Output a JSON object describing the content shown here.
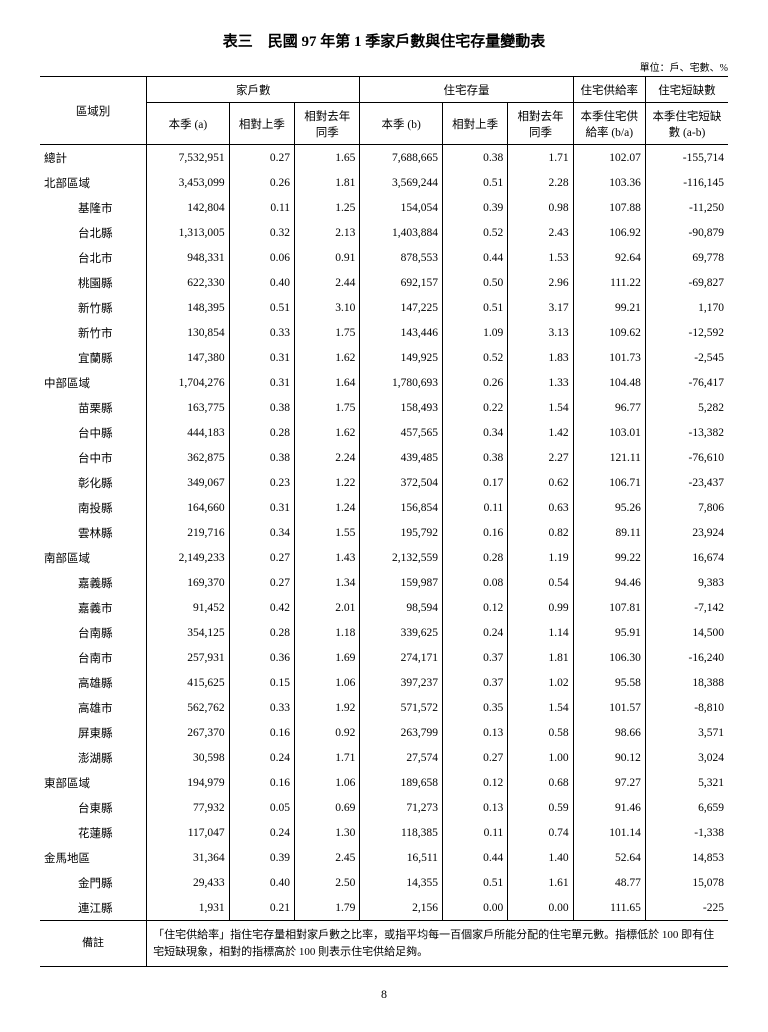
{
  "title": "表三　民國 97 年第 1 季家戶數與住宅存量變動表",
  "unit_label": "單位：戶、宅數、%",
  "page_number": "8",
  "headers": {
    "region": "區域別",
    "households": "家戶數",
    "housing_stock": "住宅存量",
    "supply_rate": "住宅供給率",
    "shortage": "住宅短缺數",
    "current_a": "本季 (a)",
    "vs_prev_q": "相對上季",
    "vs_prev_y": "相對去年同季",
    "current_b": "本季 (b)",
    "supply_rate_sub": "本季住宅供給率 (b/a)",
    "shortage_sub": "本季住宅短缺數 (a-b)"
  },
  "note_label": "備註",
  "note_text": "「住宅供給率」指住宅存量相對家戶數之比率，或指平均每一百個家戶所能分配的住宅單元數。指標低於 100 即有住宅短缺現象，相對的指標高於 100 則表示住宅供給足夠。",
  "rows": [
    {
      "region": "總計",
      "sub": false,
      "a": "7,532,951",
      "pq": "0.27",
      "py": "1.65",
      "b": "7,688,665",
      "bpq": "0.38",
      "bpy": "1.71",
      "rate": "102.07",
      "short": "-155,714"
    },
    {
      "region": "北部區域",
      "sub": false,
      "a": "3,453,099",
      "pq": "0.26",
      "py": "1.81",
      "b": "3,569,244",
      "bpq": "0.51",
      "bpy": "2.28",
      "rate": "103.36",
      "short": "-116,145"
    },
    {
      "region": "基隆市",
      "sub": true,
      "a": "142,804",
      "pq": "0.11",
      "py": "1.25",
      "b": "154,054",
      "bpq": "0.39",
      "bpy": "0.98",
      "rate": "107.88",
      "short": "-11,250"
    },
    {
      "region": "台北縣",
      "sub": true,
      "a": "1,313,005",
      "pq": "0.32",
      "py": "2.13",
      "b": "1,403,884",
      "bpq": "0.52",
      "bpy": "2.43",
      "rate": "106.92",
      "short": "-90,879"
    },
    {
      "region": "台北市",
      "sub": true,
      "a": "948,331",
      "pq": "0.06",
      "py": "0.91",
      "b": "878,553",
      "bpq": "0.44",
      "bpy": "1.53",
      "rate": "92.64",
      "short": "69,778"
    },
    {
      "region": "桃園縣",
      "sub": true,
      "a": "622,330",
      "pq": "0.40",
      "py": "2.44",
      "b": "692,157",
      "bpq": "0.50",
      "bpy": "2.96",
      "rate": "111.22",
      "short": "-69,827"
    },
    {
      "region": "新竹縣",
      "sub": true,
      "a": "148,395",
      "pq": "0.51",
      "py": "3.10",
      "b": "147,225",
      "bpq": "0.51",
      "bpy": "3.17",
      "rate": "99.21",
      "short": "1,170"
    },
    {
      "region": "新竹市",
      "sub": true,
      "a": "130,854",
      "pq": "0.33",
      "py": "1.75",
      "b": "143,446",
      "bpq": "1.09",
      "bpy": "3.13",
      "rate": "109.62",
      "short": "-12,592"
    },
    {
      "region": "宜蘭縣",
      "sub": true,
      "a": "147,380",
      "pq": "0.31",
      "py": "1.62",
      "b": "149,925",
      "bpq": "0.52",
      "bpy": "1.83",
      "rate": "101.73",
      "short": "-2,545"
    },
    {
      "region": "中部區域",
      "sub": false,
      "a": "1,704,276",
      "pq": "0.31",
      "py": "1.64",
      "b": "1,780,693",
      "bpq": "0.26",
      "bpy": "1.33",
      "rate": "104.48",
      "short": "-76,417"
    },
    {
      "region": "苗栗縣",
      "sub": true,
      "a": "163,775",
      "pq": "0.38",
      "py": "1.75",
      "b": "158,493",
      "bpq": "0.22",
      "bpy": "1.54",
      "rate": "96.77",
      "short": "5,282"
    },
    {
      "region": "台中縣",
      "sub": true,
      "a": "444,183",
      "pq": "0.28",
      "py": "1.62",
      "b": "457,565",
      "bpq": "0.34",
      "bpy": "1.42",
      "rate": "103.01",
      "short": "-13,382"
    },
    {
      "region": "台中市",
      "sub": true,
      "a": "362,875",
      "pq": "0.38",
      "py": "2.24",
      "b": "439,485",
      "bpq": "0.38",
      "bpy": "2.27",
      "rate": "121.11",
      "short": "-76,610"
    },
    {
      "region": "彰化縣",
      "sub": true,
      "a": "349,067",
      "pq": "0.23",
      "py": "1.22",
      "b": "372,504",
      "bpq": "0.17",
      "bpy": "0.62",
      "rate": "106.71",
      "short": "-23,437"
    },
    {
      "region": "南投縣",
      "sub": true,
      "a": "164,660",
      "pq": "0.31",
      "py": "1.24",
      "b": "156,854",
      "bpq": "0.11",
      "bpy": "0.63",
      "rate": "95.26",
      "short": "7,806"
    },
    {
      "region": "雲林縣",
      "sub": true,
      "a": "219,716",
      "pq": "0.34",
      "py": "1.55",
      "b": "195,792",
      "bpq": "0.16",
      "bpy": "0.82",
      "rate": "89.11",
      "short": "23,924"
    },
    {
      "region": "南部區域",
      "sub": false,
      "a": "2,149,233",
      "pq": "0.27",
      "py": "1.43",
      "b": "2,132,559",
      "bpq": "0.28",
      "bpy": "1.19",
      "rate": "99.22",
      "short": "16,674"
    },
    {
      "region": "嘉義縣",
      "sub": true,
      "a": "169,370",
      "pq": "0.27",
      "py": "1.34",
      "b": "159,987",
      "bpq": "0.08",
      "bpy": "0.54",
      "rate": "94.46",
      "short": "9,383"
    },
    {
      "region": "嘉義市",
      "sub": true,
      "a": "91,452",
      "pq": "0.42",
      "py": "2.01",
      "b": "98,594",
      "bpq": "0.12",
      "bpy": "0.99",
      "rate": "107.81",
      "short": "-7,142"
    },
    {
      "region": "台南縣",
      "sub": true,
      "a": "354,125",
      "pq": "0.28",
      "py": "1.18",
      "b": "339,625",
      "bpq": "0.24",
      "bpy": "1.14",
      "rate": "95.91",
      "short": "14,500"
    },
    {
      "region": "台南市",
      "sub": true,
      "a": "257,931",
      "pq": "0.36",
      "py": "1.69",
      "b": "274,171",
      "bpq": "0.37",
      "bpy": "1.81",
      "rate": "106.30",
      "short": "-16,240"
    },
    {
      "region": "高雄縣",
      "sub": true,
      "a": "415,625",
      "pq": "0.15",
      "py": "1.06",
      "b": "397,237",
      "bpq": "0.37",
      "bpy": "1.02",
      "rate": "95.58",
      "short": "18,388"
    },
    {
      "region": "高雄市",
      "sub": true,
      "a": "562,762",
      "pq": "0.33",
      "py": "1.92",
      "b": "571,572",
      "bpq": "0.35",
      "bpy": "1.54",
      "rate": "101.57",
      "short": "-8,810"
    },
    {
      "region": "屏東縣",
      "sub": true,
      "a": "267,370",
      "pq": "0.16",
      "py": "0.92",
      "b": "263,799",
      "bpq": "0.13",
      "bpy": "0.58",
      "rate": "98.66",
      "short": "3,571"
    },
    {
      "region": "澎湖縣",
      "sub": true,
      "a": "30,598",
      "pq": "0.24",
      "py": "1.71",
      "b": "27,574",
      "bpq": "0.27",
      "bpy": "1.00",
      "rate": "90.12",
      "short": "3,024"
    },
    {
      "region": "東部區域",
      "sub": false,
      "a": "194,979",
      "pq": "0.16",
      "py": "1.06",
      "b": "189,658",
      "bpq": "0.12",
      "bpy": "0.68",
      "rate": "97.27",
      "short": "5,321"
    },
    {
      "region": "台東縣",
      "sub": true,
      "a": "77,932",
      "pq": "0.05",
      "py": "0.69",
      "b": "71,273",
      "bpq": "0.13",
      "bpy": "0.59",
      "rate": "91.46",
      "short": "6,659"
    },
    {
      "region": "花蓮縣",
      "sub": true,
      "a": "117,047",
      "pq": "0.24",
      "py": "1.30",
      "b": "118,385",
      "bpq": "0.11",
      "bpy": "0.74",
      "rate": "101.14",
      "short": "-1,338"
    },
    {
      "region": "金馬地區",
      "sub": false,
      "a": "31,364",
      "pq": "0.39",
      "py": "2.45",
      "b": "16,511",
      "bpq": "0.44",
      "bpy": "1.40",
      "rate": "52.64",
      "short": "14,853"
    },
    {
      "region": "金門縣",
      "sub": true,
      "a": "29,433",
      "pq": "0.40",
      "py": "2.50",
      "b": "14,355",
      "bpq": "0.51",
      "bpy": "1.61",
      "rate": "48.77",
      "short": "15,078"
    },
    {
      "region": "連江縣",
      "sub": true,
      "a": "1,931",
      "pq": "0.21",
      "py": "1.79",
      "b": "2,156",
      "bpq": "0.00",
      "bpy": "0.00",
      "rate": "111.65",
      "short": "-225"
    }
  ]
}
